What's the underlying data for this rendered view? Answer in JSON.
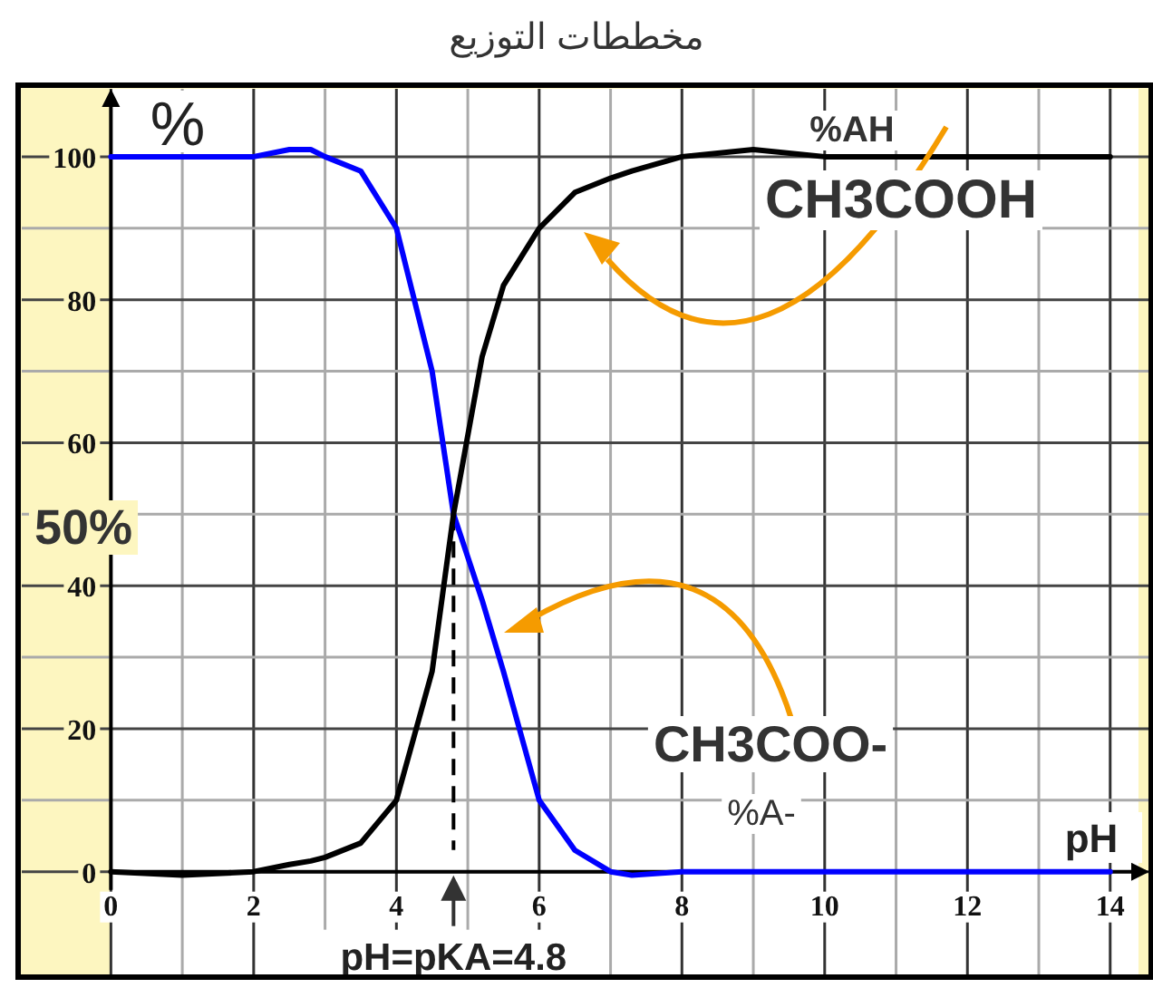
{
  "chart_data": {
    "type": "line",
    "title": "مخططات التوزيع",
    "xlabel": "pH",
    "ylabel": "%",
    "x": [
      0,
      1,
      2,
      2.5,
      2.8,
      3,
      3.5,
      4,
      4.5,
      4.8,
      5.2,
      5.5,
      6,
      6.5,
      7,
      7.3,
      8,
      9,
      10,
      11,
      12,
      13,
      14
    ],
    "series": [
      {
        "color": "#0000ff",
        "values": [
          100,
          100,
          100,
          101,
          101,
          100,
          98,
          90,
          70,
          50,
          38,
          28,
          10,
          3,
          0,
          -0.5,
          0,
          0,
          0,
          0,
          0,
          0,
          0
        ]
      },
      {
        "color": "#000000",
        "values": [
          0,
          -0.5,
          0,
          1,
          1.5,
          2,
          4,
          10,
          28,
          50,
          72,
          82,
          90,
          95,
          97,
          98,
          100,
          101,
          100,
          100,
          100,
          100,
          100
        ]
      }
    ],
    "xlim": [
      -1.3,
      14.6
    ],
    "ylim": [
      -15,
      110
    ],
    "xticks": [
      0,
      {
        "value": 1,
        "label": null
      },
      2,
      {
        "value": 3,
        "label": null
      },
      4,
      {
        "value": 5,
        "label": null
      },
      6,
      {
        "value": 7,
        "label": null
      },
      8,
      {
        "value": 9,
        "label": null
      },
      10,
      {
        "value": 11,
        "label": null
      },
      12,
      {
        "value": 13,
        "label": null
      },
      14
    ],
    "yticks": [
      0,
      {
        "value": 10,
        "label": null
      },
      20,
      {
        "value": 30,
        "label": null
      },
      40,
      {
        "value": 50,
        "label": null
      },
      60,
      {
        "value": 70,
        "label": null
      },
      80,
      {
        "value": 90,
        "label": null
      },
      100
    ],
    "grid": true,
    "marker": "none",
    "line_style": "solid",
    "ref_lines": [
      {
        "axis": "x",
        "value": 4.8,
        "label": "pH=pKA=4.8",
        "color": "#000000",
        "line_style": "dashed"
      }
    ],
    "annotations": [
      "50%",
      "%AH",
      "CH3COOH",
      "CH3COO-",
      "%A-"
    ]
  }
}
